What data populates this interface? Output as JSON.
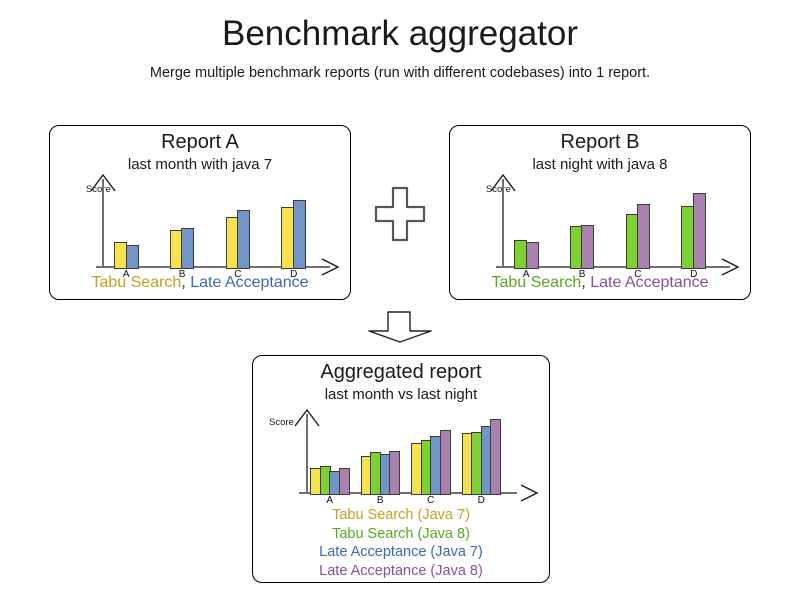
{
  "page": {
    "title": "Benchmark aggregator",
    "subtitle": "Merge multiple benchmark reports (run with different codebases) into 1 report."
  },
  "connectors": {
    "plus_icon": "plus",
    "down_arrow_icon": "arrow-down"
  },
  "colors": {
    "tabu_search_java7_bar": "#f6e14e",
    "tabu_search_java8_bar": "#7cd232",
    "late_acceptance_java7_bar": "#7195c7",
    "late_acceptance_java8_bar": "#aa81ad",
    "bar_border": "#3b3b3b",
    "axis": "#6f6f6f"
  },
  "reports": {
    "a": {
      "title": "Report A",
      "subtitle": "last month with java 7",
      "legend": {
        "separator": ", ",
        "items": [
          {
            "label": "Tabu Search",
            "color": "#c59f1e"
          },
          {
            "label": "Late Acceptance",
            "color": "#3c68b5"
          }
        ]
      },
      "chart_data": {
        "type": "bar",
        "title": "Report A",
        "subtitle": "last month with java 7",
        "ylabel": "Score",
        "categories": [
          "A",
          "B",
          "C",
          "D"
        ],
        "axis_note": "y-axis unlabeled; values are relative score heights estimated from pixels",
        "series": [
          {
            "name": "Tabu Search",
            "color": "#f6e14e",
            "values": [
              27,
              39,
              52,
              62
            ]
          },
          {
            "name": "Late Acceptance",
            "color": "#7195c7",
            "values": [
              24,
              41,
              59,
              69
            ]
          }
        ]
      }
    },
    "b": {
      "title": "Report B",
      "subtitle": "last night with java 8",
      "legend": {
        "separator": ", ",
        "items": [
          {
            "label": "Tabu Search",
            "color": "#58a81e"
          },
          {
            "label": "Late Acceptance",
            "color": "#89509e"
          }
        ]
      },
      "chart_data": {
        "type": "bar",
        "title": "Report B",
        "subtitle": "last night with java 8",
        "ylabel": "Score",
        "categories": [
          "A",
          "B",
          "C",
          "D"
        ],
        "axis_note": "y-axis unlabeled; values are relative score heights estimated from pixels",
        "series": [
          {
            "name": "Tabu Search",
            "color": "#7cd232",
            "values": [
              29,
              43,
              55,
              63
            ]
          },
          {
            "name": "Late Acceptance",
            "color": "#aa81ad",
            "values": [
              27,
              44,
              65,
              76
            ]
          }
        ]
      }
    },
    "aggregated": {
      "title": "Aggregated report",
      "subtitle": "last month vs last night",
      "legend": {
        "items": [
          {
            "label": "Tabu Search (Java 7)",
            "color": "#c59f1e"
          },
          {
            "label": "Tabu Search (Java 8)",
            "color": "#58a81e"
          },
          {
            "label": "Late Acceptance (Java 7)",
            "color": "#3c68b5"
          },
          {
            "label": "Late Acceptance (Java 8)",
            "color": "#89509e"
          }
        ]
      },
      "chart_data": {
        "type": "bar",
        "title": "Aggregated report",
        "subtitle": "last month vs last night",
        "ylabel": "Score",
        "categories": [
          "A",
          "B",
          "C",
          "D"
        ],
        "axis_note": "y-axis unlabeled; values are relative score heights estimated from pixels",
        "series": [
          {
            "name": "Tabu Search (Java 7)",
            "color": "#f6e14e",
            "values": [
              27,
              39,
              52,
              62
            ]
          },
          {
            "name": "Tabu Search (Java 8)",
            "color": "#7cd232",
            "values": [
              29,
              43,
              55,
              63
            ]
          },
          {
            "name": "Late Acceptance (Java 7)",
            "color": "#7195c7",
            "values": [
              24,
              41,
              59,
              69
            ]
          },
          {
            "name": "Late Acceptance (Java 8)",
            "color": "#aa81ad",
            "values": [
              27,
              44,
              65,
              76
            ]
          }
        ]
      }
    }
  }
}
